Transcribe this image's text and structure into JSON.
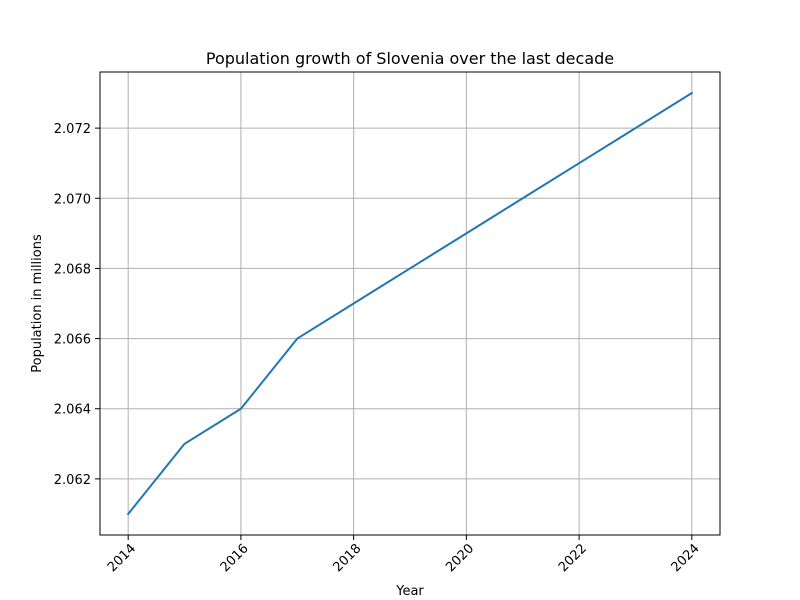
{
  "chart_data": {
    "type": "line",
    "title": "Population growth of Slovenia over the last decade",
    "xlabel": "Year",
    "ylabel": "Population in millions",
    "x": [
      2014,
      2015,
      2016,
      2017,
      2018,
      2019,
      2020,
      2021,
      2022,
      2023,
      2024
    ],
    "series": [
      {
        "values": [
          2.061,
          2.063,
          2.064,
          2.066,
          2.067,
          2.068,
          2.069,
          2.07,
          2.071,
          2.072,
          2.073
        ],
        "color": "#1f77b4"
      }
    ],
    "xlim": [
      2013.5,
      2024.5
    ],
    "ylim": [
      2.0604,
      2.0736
    ],
    "xticks": [
      "2014",
      "2016",
      "2018",
      "2020",
      "2022",
      "2024"
    ],
    "yticks": [
      "2.062",
      "2.064",
      "2.066",
      "2.068",
      "2.070",
      "2.072"
    ],
    "grid": true,
    "xtick_rotation": 45
  }
}
